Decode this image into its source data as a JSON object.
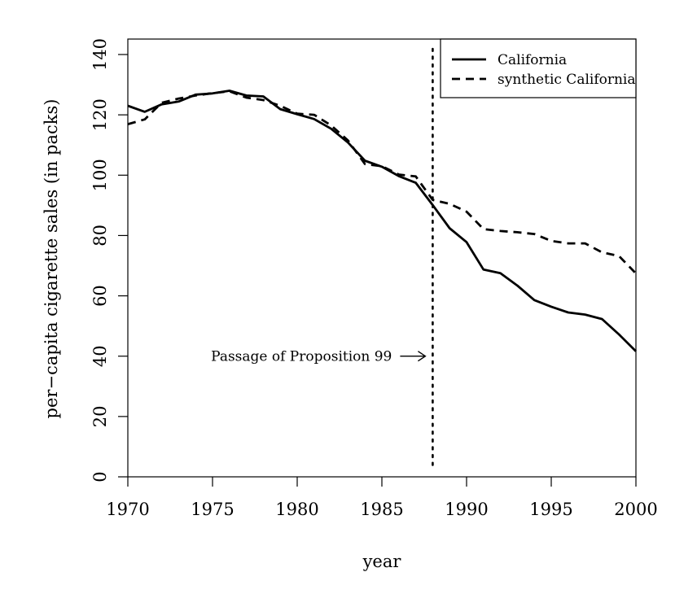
{
  "chart_data": {
    "type": "line",
    "title": "",
    "xlabel": "year",
    "ylabel": "per−capita cigarette sales (in packs)",
    "xlim": [
      1970,
      2000
    ],
    "ylim": [
      0,
      145
    ],
    "x_ticks": [
      "1970",
      "1975",
      "1980",
      "1985",
      "1990",
      "1995",
      "2000"
    ],
    "y_ticks": [
      "0",
      "20",
      "40",
      "60",
      "80",
      "100",
      "120",
      "140"
    ],
    "x_tick_values": [
      1970,
      1975,
      1980,
      1985,
      1990,
      1995,
      2000
    ],
    "y_tick_values": [
      0,
      20,
      40,
      60,
      80,
      100,
      120,
      140
    ],
    "grid": false,
    "legend_position": "top-right",
    "x": [
      1970,
      1971,
      1972,
      1973,
      1974,
      1975,
      1976,
      1977,
      1978,
      1979,
      1980,
      1981,
      1982,
      1983,
      1984,
      1985,
      1986,
      1987,
      1988,
      1989,
      1990,
      1991,
      1992,
      1993,
      1994,
      1995,
      1996,
      1997,
      1998,
      1999,
      2000
    ],
    "series": [
      {
        "name": "California",
        "style": "solid",
        "color": "#000000",
        "values": [
          123.0,
          121.0,
          123.5,
          124.4,
          126.7,
          127.1,
          128.0,
          126.4,
          126.1,
          121.9,
          120.2,
          118.6,
          115.4,
          110.8,
          104.8,
          102.8,
          99.7,
          97.5,
          90.1,
          82.4,
          77.8,
          68.7,
          67.5,
          63.4,
          58.6,
          56.4,
          54.5,
          53.8,
          52.3,
          47.2,
          41.6
        ]
      },
      {
        "name": "synthetic California",
        "style": "dashed",
        "color": "#000000",
        "values": [
          116.9,
          118.5,
          124.0,
          125.4,
          126.4,
          127.2,
          127.8,
          125.7,
          124.9,
          123.0,
          120.4,
          120.0,
          116.5,
          111.5,
          103.7,
          103.0,
          100.2,
          99.6,
          91.8,
          90.5,
          87.9,
          82.1,
          81.5,
          81.1,
          80.5,
          78.2,
          77.4,
          77.4,
          74.4,
          73.2,
          67.4
        ]
      }
    ],
    "reference_line": {
      "x": 1988,
      "style": "dotted"
    },
    "annotation": {
      "text": "Passage of Proposition 99",
      "x": 1988,
      "y": 40
    }
  }
}
